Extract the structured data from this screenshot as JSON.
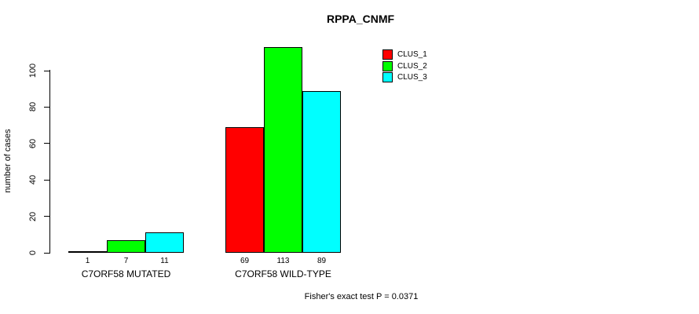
{
  "chart_data": {
    "type": "bar",
    "title": "RPPA_CNMF",
    "xlabel": "",
    "ylabel": "number of cases",
    "categories": [
      "C7ORF58 MUTATED",
      "C7ORF58 WILD-TYPE"
    ],
    "series": [
      {
        "name": "CLUS_1",
        "color": "#ff0000",
        "values": [
          1,
          69
        ]
      },
      {
        "name": "CLUS_2",
        "color": "#00ff00",
        "values": [
          7,
          113
        ]
      },
      {
        "name": "CLUS_3",
        "color": "#00ffff",
        "values": [
          11,
          89
        ]
      }
    ],
    "yticks": [
      0,
      20,
      40,
      60,
      80,
      100
    ],
    "ylim": [
      0,
      113
    ],
    "grid": false,
    "legend_position": "top-right",
    "bar_value_labels": true,
    "annotation": "Fisher's exact test P = 0.0371"
  }
}
